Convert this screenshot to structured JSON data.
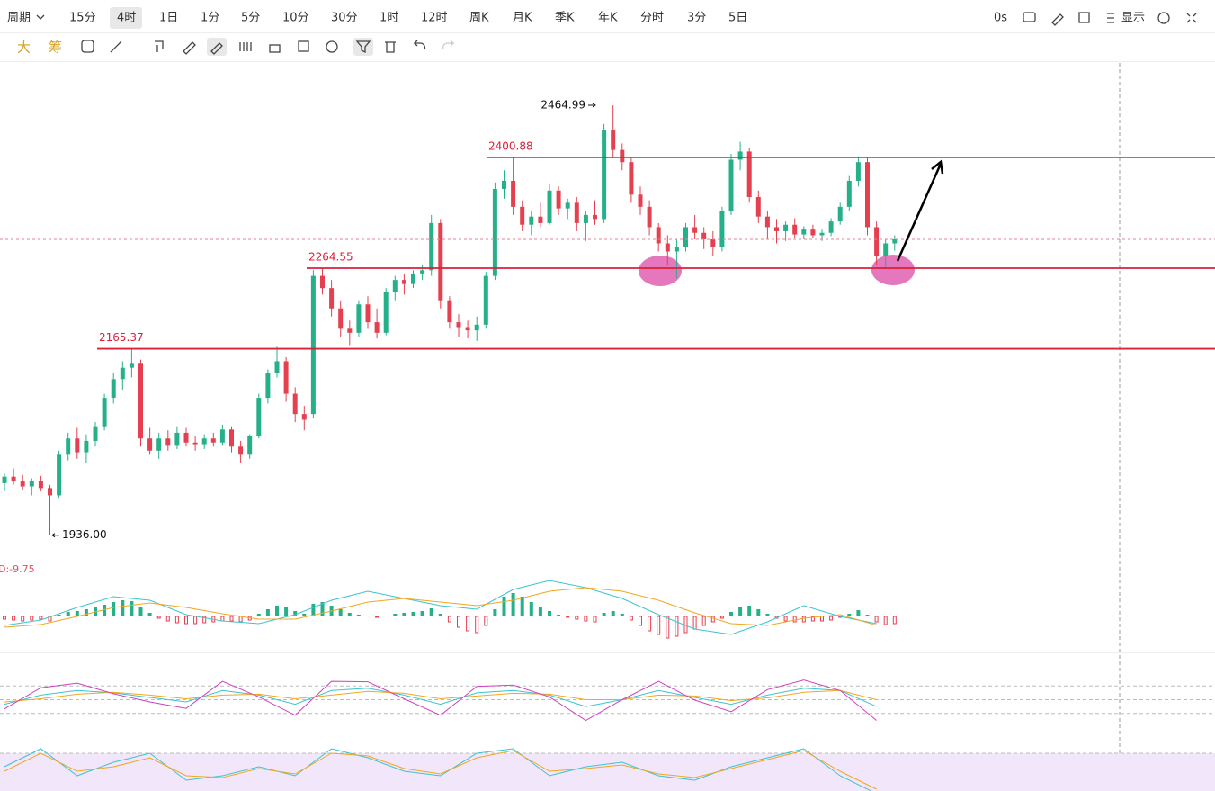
{
  "toolbar": {
    "period_menu": "周期",
    "periods": [
      "15分",
      "4时",
      "1日",
      "1分",
      "5分",
      "10分",
      "30分",
      "1时",
      "12时",
      "周K",
      "月K",
      "季K",
      "年K",
      "分时",
      "3分",
      "5日"
    ],
    "speed": "0s",
    "display": "显示",
    "tools": [
      "大",
      "筹"
    ]
  },
  "chart_data": {
    "type": "candlestick",
    "up_color": "#26b08a",
    "down_color": "#e5404f",
    "level_color": "#d9213a",
    "ylim": [
      1908,
      2517
    ],
    "high": 2464.99,
    "low": {
      "value": 1936,
      "label": "1936.00"
    },
    "levels": [
      2165.37,
      2264.55,
      2400.88
    ],
    "candles": [
      [
        2000,
        2012,
        1990,
        2008
      ],
      [
        2008,
        2018,
        1998,
        2002
      ],
      [
        2002,
        2010,
        1992,
        1996
      ],
      [
        1996,
        2006,
        1985,
        2003
      ],
      [
        2003,
        2009,
        1990,
        1994
      ],
      [
        1994,
        1998,
        1936,
        1985
      ],
      [
        1985,
        2040,
        1982,
        2035
      ],
      [
        2035,
        2062,
        2028,
        2055
      ],
      [
        2055,
        2068,
        2030,
        2038
      ],
      [
        2038,
        2060,
        2025,
        2052
      ],
      [
        2052,
        2075,
        2045,
        2070
      ],
      [
        2070,
        2110,
        2065,
        2105
      ],
      [
        2105,
        2135,
        2098,
        2128
      ],
      [
        2128,
        2150,
        2115,
        2142
      ],
      [
        2142,
        2165.37,
        2130,
        2148
      ],
      [
        2148,
        2152,
        2045,
        2055
      ],
      [
        2055,
        2068,
        2035,
        2040
      ],
      [
        2040,
        2062,
        2030,
        2055
      ],
      [
        2055,
        2065,
        2040,
        2046
      ],
      [
        2046,
        2070,
        2042,
        2062
      ],
      [
        2062,
        2068,
        2045,
        2050
      ],
      [
        2050,
        2058,
        2040,
        2048
      ],
      [
        2048,
        2060,
        2042,
        2055
      ],
      [
        2055,
        2062,
        2045,
        2050
      ],
      [
        2050,
        2072,
        2046,
        2066
      ],
      [
        2066,
        2070,
        2038,
        2045
      ],
      [
        2045,
        2052,
        2025,
        2035
      ],
      [
        2035,
        2060,
        2030,
        2058
      ],
      [
        2058,
        2110,
        2055,
        2105
      ],
      [
        2105,
        2140,
        2098,
        2135
      ],
      [
        2135,
        2168,
        2130,
        2150
      ],
      [
        2150,
        2155,
        2100,
        2110
      ],
      [
        2110,
        2118,
        2075,
        2085
      ],
      [
        2085,
        2095,
        2065,
        2078
      ],
      [
        2085,
        2262,
        2080,
        2255
      ],
      [
        2255,
        2264.55,
        2232,
        2240
      ],
      [
        2240,
        2250,
        2205,
        2215
      ],
      [
        2215,
        2225,
        2180,
        2190
      ],
      [
        2190,
        2200,
        2170,
        2185
      ],
      [
        2185,
        2225,
        2180,
        2220
      ],
      [
        2220,
        2230,
        2190,
        2198
      ],
      [
        2198,
        2215,
        2178,
        2185
      ],
      [
        2185,
        2240,
        2182,
        2235
      ],
      [
        2235,
        2255,
        2225,
        2250
      ],
      [
        2250,
        2258,
        2232,
        2245
      ],
      [
        2245,
        2262,
        2240,
        2258
      ],
      [
        2258,
        2268,
        2250,
        2262
      ],
      [
        2262,
        2330,
        2255,
        2320
      ],
      [
        2320,
        2325,
        2215,
        2225
      ],
      [
        2225,
        2230,
        2190,
        2198
      ],
      [
        2198,
        2208,
        2180,
        2192
      ],
      [
        2192,
        2200,
        2178,
        2188
      ],
      [
        2188,
        2205,
        2175,
        2195
      ],
      [
        2195,
        2260,
        2190,
        2255
      ],
      [
        2255,
        2370,
        2250,
        2362
      ],
      [
        2362,
        2385,
        2350,
        2372
      ],
      [
        2372,
        2400.88,
        2330,
        2340
      ],
      [
        2340,
        2348,
        2310,
        2318
      ],
      [
        2318,
        2335,
        2305,
        2328
      ],
      [
        2328,
        2345,
        2315,
        2320
      ],
      [
        2320,
        2368,
        2318,
        2360
      ],
      [
        2360,
        2365,
        2330,
        2338
      ],
      [
        2338,
        2350,
        2325,
        2345
      ],
      [
        2345,
        2352,
        2310,
        2320
      ],
      [
        2320,
        2335,
        2298,
        2330
      ],
      [
        2330,
        2348,
        2318,
        2325
      ],
      [
        2325,
        2442,
        2320,
        2435
      ],
      [
        2435,
        2464.99,
        2400,
        2410
      ],
      [
        2410,
        2418,
        2385,
        2395
      ],
      [
        2395,
        2400,
        2345,
        2355
      ],
      [
        2355,
        2365,
        2330,
        2340
      ],
      [
        2340,
        2348,
        2305,
        2315
      ],
      [
        2315,
        2320,
        2285,
        2295
      ],
      [
        2295,
        2305,
        2268,
        2285
      ],
      [
        2285,
        2300,
        2252,
        2290
      ],
      [
        2290,
        2320,
        2285,
        2315
      ],
      [
        2315,
        2330,
        2300,
        2308
      ],
      [
        2308,
        2315,
        2288,
        2300
      ],
      [
        2300,
        2310,
        2280,
        2290
      ],
      [
        2290,
        2340,
        2285,
        2335
      ],
      [
        2335,
        2405,
        2330,
        2398
      ],
      [
        2398,
        2420,
        2385,
        2408
      ],
      [
        2408,
        2412,
        2345,
        2352
      ],
      [
        2352,
        2360,
        2320,
        2328
      ],
      [
        2328,
        2335,
        2300,
        2315
      ],
      [
        2315,
        2325,
        2295,
        2310
      ],
      [
        2310,
        2322,
        2298,
        2318
      ],
      [
        2318,
        2326,
        2302,
        2306
      ],
      [
        2306,
        2316,
        2300,
        2312
      ],
      [
        2312,
        2318,
        2302,
        2305
      ],
      [
        2305,
        2312,
        2298,
        2308
      ],
      [
        2308,
        2326,
        2304,
        2322
      ],
      [
        2322,
        2345,
        2318,
        2340
      ],
      [
        2340,
        2378,
        2335,
        2372
      ],
      [
        2372,
        2402,
        2365,
        2395
      ],
      [
        2395,
        2400,
        2305,
        2315
      ],
      [
        2315,
        2322,
        2268,
        2280
      ],
      [
        2280,
        2300,
        2265,
        2295
      ],
      [
        2295,
        2305,
        2286,
        2300
      ]
    ],
    "indicators": {
      "macd": {
        "label": "D:-9.75",
        "ylim": [
          -30,
          40
        ],
        "dif_color": "#3cc4d0",
        "dea_color": "#f0a820",
        "hist": [
          -3,
          -4,
          -5,
          -4,
          -3,
          -5,
          2,
          5,
          6,
          8,
          10,
          13,
          16,
          18,
          17,
          10,
          4,
          -2,
          -5,
          -7,
          -8,
          -8,
          -7,
          -6,
          -5,
          -5,
          -6,
          -4,
          3,
          8,
          12,
          10,
          6,
          3,
          14,
          16,
          12,
          8,
          4,
          2,
          1,
          -1,
          1,
          3,
          4,
          5,
          6,
          9,
          3,
          -6,
          -12,
          -16,
          -18,
          -10,
          8,
          22,
          26,
          22,
          16,
          10,
          6,
          2,
          -1,
          -3,
          -5,
          -6,
          4,
          6,
          3,
          -4,
          -10,
          -16,
          -20,
          -24,
          -22,
          -18,
          -14,
          -10,
          -6,
          -2,
          5,
          10,
          12,
          8,
          3,
          -2,
          -5,
          -6,
          -6,
          -5,
          -5,
          -4,
          -1,
          3,
          7,
          2,
          -6,
          -9,
          -8
        ],
        "dif": [
          -10,
          -4,
          10,
          22,
          18,
          2,
          -5,
          -8,
          2,
          18,
          28,
          20,
          12,
          8,
          30,
          40,
          32,
          20,
          2,
          -14,
          -20,
          -6,
          12,
          0,
          -8
        ],
        "dea": [
          -12,
          -9,
          0,
          10,
          15,
          10,
          3,
          -3,
          -3,
          6,
          16,
          20,
          16,
          12,
          18,
          28,
          32,
          28,
          18,
          4,
          -8,
          -10,
          -2,
          2,
          -9.75
        ]
      },
      "kdj": {
        "ylim": [
          0,
          100
        ],
        "levels": [
          20,
          50,
          80
        ],
        "k_color": "#3cc4d0",
        "d_color": "#f0a820",
        "j_color": "#d040c0",
        "k": [
          40,
          60,
          70,
          65,
          55,
          45,
          70,
          60,
          40,
          70,
          75,
          60,
          40,
          65,
          70,
          60,
          35,
          50,
          70,
          55,
          40,
          60,
          75,
          70,
          35
        ],
        "d": [
          45,
          52,
          62,
          66,
          60,
          52,
          60,
          62,
          52,
          60,
          68,
          64,
          52,
          58,
          64,
          62,
          50,
          50,
          60,
          58,
          48,
          54,
          66,
          70,
          50
        ],
        "j": [
          30,
          76,
          86,
          63,
          45,
          31,
          90,
          56,
          16,
          90,
          89,
          52,
          16,
          79,
          82,
          56,
          5,
          50,
          90,
          49,
          24,
          72,
          93,
          70,
          5
        ]
      },
      "rsi": {
        "ylim": [
          0,
          100
        ],
        "r1_color": "#3cc4d0",
        "r2_color": "#f0a820",
        "r1": [
          70,
          90,
          60,
          75,
          85,
          55,
          60,
          70,
          60,
          90,
          80,
          65,
          60,
          85,
          90,
          60,
          70,
          75,
          60,
          55,
          70,
          80,
          90,
          60,
          40
        ],
        "r2": [
          65,
          85,
          65,
          70,
          80,
          60,
          58,
          68,
          62,
          85,
          82,
          68,
          62,
          80,
          88,
          65,
          68,
          72,
          62,
          58,
          68,
          78,
          88,
          65,
          45
        ]
      }
    }
  }
}
